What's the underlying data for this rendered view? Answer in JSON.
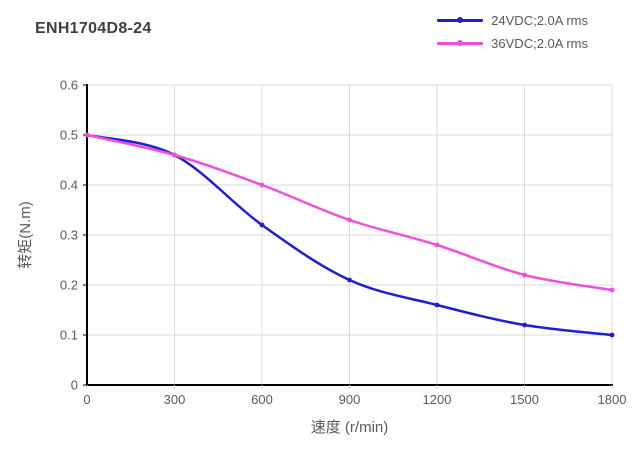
{
  "page": {
    "title": "ENH1704D8-24"
  },
  "style": {
    "title_color": "#3f3f3f",
    "grid_color": "#d9d9d9",
    "axis_color": "#000000",
    "tick_label_color": "#595959",
    "axis_title_color": "#595959"
  },
  "chart_data": {
    "type": "line",
    "title": "ENH1704D8-24",
    "xlabel": "速度 (r/min)",
    "ylabel": "转矩(N.m)",
    "x": [
      0,
      300,
      600,
      900,
      1200,
      1500,
      1800
    ],
    "series": [
      {
        "name": "24VDC;2.0A rms",
        "color": "#1e1ed2",
        "values": [
          0.5,
          0.46,
          0.32,
          0.21,
          0.16,
          0.12,
          0.1
        ]
      },
      {
        "name": "36VDC;2.0A rms",
        "color": "#ee50d8",
        "values": [
          0.5,
          0.46,
          0.4,
          0.33,
          0.28,
          0.22,
          0.19
        ]
      }
    ],
    "xlim": [
      0,
      1800
    ],
    "ylim": [
      0,
      0.6
    ],
    "xticks": [
      0,
      300,
      600,
      900,
      1200,
      1500,
      1800
    ],
    "xtick_labels": [
      "0",
      "300",
      "600",
      "900",
      "1200",
      "1500",
      "1800"
    ],
    "yticks": [
      0,
      0.1,
      0.2,
      0.3,
      0.4,
      0.5,
      0.6
    ],
    "ytick_labels": [
      "0",
      "0.1",
      "0.2",
      "0.3",
      "0.4",
      "0.5",
      "0.6"
    ],
    "grid": true,
    "legend_position": "top-right",
    "smooth_lines": true,
    "markers": true
  }
}
